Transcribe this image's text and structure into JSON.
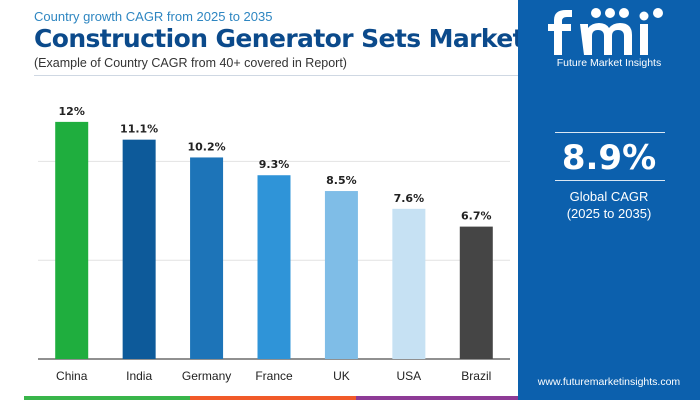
{
  "header": {
    "subtitle_top": "Country growth CAGR from 2025 to 2035",
    "title": "Construction Generator Sets Market",
    "subtitle_bottom": "(Example of Country CAGR from 40+ covered in Report)"
  },
  "chart_data": {
    "type": "bar",
    "categories": [
      "China",
      "India",
      "Germany",
      "France",
      "UK",
      "USA",
      "Brazil"
    ],
    "values": [
      12,
      11.1,
      10.2,
      9.3,
      8.5,
      7.6,
      6.7
    ],
    "value_labels": [
      "12%",
      "11.1%",
      "10.2%",
      "9.3%",
      "8.5%",
      "7.6%",
      "6.7%"
    ],
    "colors": [
      "#1fae3e",
      "#0d5a9a",
      "#1d74b8",
      "#2f94d8",
      "#7fbde7",
      "#c6e1f3",
      "#454545"
    ],
    "ylim": [
      0,
      12.5
    ],
    "grid": true,
    "title": "",
    "xlabel": "",
    "ylabel": ""
  },
  "sidebar": {
    "logo_text": "Future Market Insights",
    "kpi_value": "8.9%",
    "kpi_label": "Global CAGR",
    "kpi_period": "(2025 to 2035)",
    "website": "www.futuremarketinsights.com"
  },
  "footer_colors": [
    "#39b54a",
    "#f15a29",
    "#8e3b96"
  ]
}
